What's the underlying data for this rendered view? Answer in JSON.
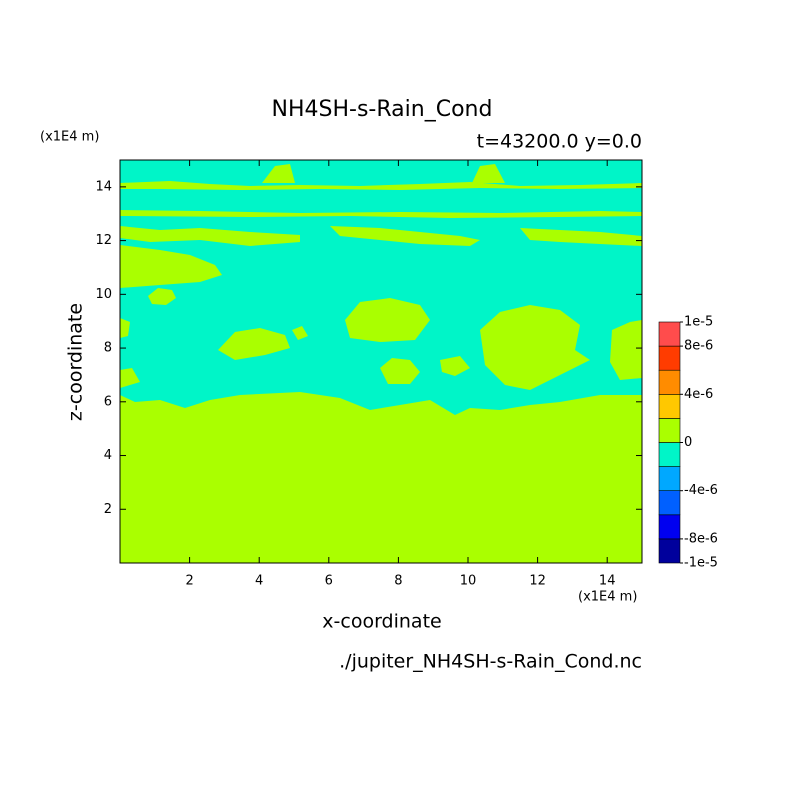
{
  "chart_data": {
    "type": "contour",
    "title": "NH4SH-s-Rain_Cond",
    "subtitle": "t=43200.0 y=0.0",
    "x_label": "x-coordinate",
    "y_label": "z-coordinate",
    "x_unit": "(x1E4 m)",
    "y_unit": "(x1E4 m)",
    "footer": "./jupiter_NH4SH-s-Rain_Cond.nc",
    "xlim": [
      0,
      15
    ],
    "ylim": [
      0,
      15
    ],
    "xticks": [
      2,
      4,
      6,
      8,
      10,
      12,
      14
    ],
    "yticks": [
      2,
      4,
      6,
      8,
      10,
      12,
      14
    ],
    "levels": [
      -1e-05,
      -8e-06,
      -6e-06,
      -4e-06,
      -2e-06,
      0,
      2e-06,
      4e-06,
      6e-06,
      8e-06,
      1e-05
    ],
    "colors": [
      "#00009c",
      "#0000f0",
      "#0060ff",
      "#00a8ff",
      "#00f5c8",
      "#aaff00",
      "#ffc800",
      "#ff8c00",
      "#ff3c00",
      "#ff4c4c"
    ],
    "colorbar_ticks": [
      {
        "value": 1e-05,
        "label": "1e-5"
      },
      {
        "value": 8e-06,
        "label": "8e-6"
      },
      {
        "value": 4e-06,
        "label": "4e-6"
      },
      0,
      {
        "value": -4e-06,
        "label": "-4e-6"
      },
      {
        "value": -8e-06,
        "label": "-8e-6"
      },
      {
        "value": -1e-05,
        "label": "-1e-5"
      }
    ]
  }
}
